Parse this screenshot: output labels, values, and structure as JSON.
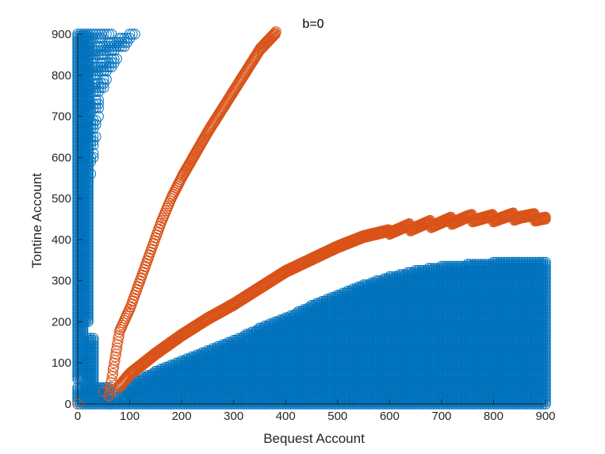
{
  "chart_data": {
    "type": "scatter",
    "title": "b=0",
    "xlabel": "Bequest Account",
    "ylabel": "Tontine Account",
    "xlim": [
      0,
      900
    ],
    "ylim": [
      0,
      900
    ],
    "xticks": [
      "0",
      "100",
      "200",
      "300",
      "400",
      "500",
      "600",
      "700",
      "800",
      "900"
    ],
    "yticks": [
      "0",
      "100",
      "200",
      "300",
      "400",
      "500",
      "600",
      "700",
      "800",
      "900"
    ],
    "grid": false,
    "marker": "circle-open",
    "colors": {
      "blue": "#0072BD",
      "orange": "#D95319",
      "axis": "#262626",
      "vline": "#A2142F"
    },
    "series": [
      {
        "color": "#0072BD",
        "regions": [
          {
            "x": [
              0,
              10
            ],
            "y": [
              60,
              900
            ]
          },
          {
            "x": [
              10,
              20
            ],
            "y": [
              200,
              900
            ]
          },
          {
            "x": [
              0,
              60
            ],
            "y": [
              0,
              40
            ]
          },
          {
            "x": [
              20,
              30
            ],
            "y": [
              40,
              160
            ]
          }
        ],
        "upper_cloud": {
          "y_max": 900,
          "x_extent_by_y": [
            [
              460,
              15
            ],
            [
              600,
              30
            ],
            [
              700,
              40
            ],
            [
              750,
              45
            ],
            [
              800,
              60
            ],
            [
              850,
              80
            ],
            [
              900,
              110
            ]
          ]
        },
        "lower_envelope": [
          [
            60,
            0
          ],
          [
            100,
            50
          ],
          [
            150,
            80
          ],
          [
            200,
            105
          ],
          [
            250,
            130
          ],
          [
            300,
            155
          ],
          [
            350,
            185
          ],
          [
            400,
            210
          ],
          [
            450,
            240
          ],
          [
            500,
            265
          ],
          [
            550,
            290
          ],
          [
            600,
            310
          ],
          [
            650,
            325
          ],
          [
            700,
            335
          ],
          [
            800,
            345
          ],
          [
            900,
            345
          ]
        ]
      },
      {
        "color": "#D95319",
        "upper_branch": [
          [
            60,
            20
          ],
          [
            70,
            100
          ],
          [
            80,
            175
          ],
          [
            100,
            230
          ],
          [
            120,
            300
          ],
          [
            140,
            370
          ],
          [
            160,
            440
          ],
          [
            180,
            500
          ],
          [
            200,
            550
          ],
          [
            250,
            660
          ],
          [
            300,
            760
          ],
          [
            350,
            860
          ],
          [
            380,
            900
          ]
        ],
        "lower_branch": [
          [
            80,
            40
          ],
          [
            100,
            70
          ],
          [
            150,
            120
          ],
          [
            200,
            165
          ],
          [
            250,
            205
          ],
          [
            300,
            240
          ],
          [
            350,
            280
          ],
          [
            400,
            320
          ],
          [
            450,
            350
          ],
          [
            500,
            380
          ],
          [
            550,
            405
          ],
          [
            600,
            420
          ],
          [
            650,
            430
          ],
          [
            700,
            440
          ],
          [
            750,
            450
          ],
          [
            800,
            450
          ],
          [
            850,
            455
          ],
          [
            900,
            450
          ]
        ],
        "points": [
          [
            0,
            0
          ],
          [
            50,
            30
          ],
          [
            60,
            20
          ],
          [
            70,
            30
          ]
        ]
      }
    ]
  }
}
